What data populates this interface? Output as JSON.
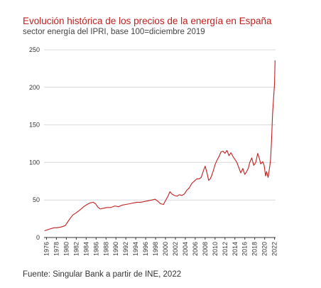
{
  "header": {
    "title": "Evolución histórica de los precios de la energía en España",
    "subtitle": "sector energía del IPRI, base 100=diciembre 2019"
  },
  "footer": {
    "source": "Fuente: Singular Bank a partir de INE, 2022"
  },
  "colors": {
    "series": "#c0201f",
    "grid": "#d9d9d9",
    "text": "#333333"
  },
  "chart_data": {
    "type": "line",
    "title": "Evolución histórica de los precios de la energía en España",
    "subtitle": "sector energía del IPRI, base 100=diciembre 2019",
    "xlabel": "",
    "ylabel": "",
    "xlim": [
      1975.5,
      2022.2
    ],
    "ylim": [
      0,
      250
    ],
    "yticks": [
      0,
      50,
      100,
      150,
      200,
      250
    ],
    "xticks": [
      1976,
      1978,
      1980,
      1982,
      1984,
      1986,
      1988,
      1990,
      1992,
      1994,
      1996,
      1998,
      2000,
      2002,
      2004,
      2006,
      2008,
      2010,
      2012,
      2014,
      2016,
      2018,
      2020,
      2022
    ],
    "grid": true,
    "legend": "none",
    "series": [
      {
        "x": [
          1975.6,
          1976.5,
          1977.5,
          1978.0,
          1979.0,
          1979.8,
          1980.5,
          1981.3,
          1982.0,
          1982.8,
          1983.5,
          1984.2,
          1984.8,
          1985.4,
          1985.9,
          1986.3,
          1986.8,
          1987.5,
          1988.2,
          1989.0,
          1989.8,
          1990.5,
          1991.2,
          1992.0,
          1992.8,
          1993.5,
          1994.3,
          1995.0,
          1995.8,
          1996.5,
          1997.3,
          1997.9,
          1998.5,
          1999.0,
          1999.6,
          2000.0,
          2000.5,
          2000.9,
          2001.3,
          2001.8,
          2002.3,
          2002.8,
          2003.3,
          2003.8,
          2004.3,
          2004.8,
          2005.3,
          2005.8,
          2006.3,
          2006.8,
          2007.2,
          2007.6,
          2008.0,
          2008.4,
          2008.7,
          2009.0,
          2009.3,
          2009.7,
          2010.0,
          2010.4,
          2010.8,
          2011.2,
          2011.6,
          2012.0,
          2012.4,
          2012.8,
          2013.2,
          2013.6,
          2014.0,
          2014.4,
          2014.8,
          2015.2,
          2015.6,
          2016.0,
          2016.3,
          2016.7,
          2017.0,
          2017.4,
          2017.8,
          2018.2,
          2018.6,
          2018.9,
          2019.2,
          2019.6,
          2019.9,
          2020.2,
          2020.4,
          2020.7,
          2021.0,
          2021.2,
          2021.4,
          2021.6,
          2021.8,
          2022.0,
          2022.1
        ],
        "values": [
          9,
          11,
          13,
          13,
          14,
          16,
          23,
          30,
          33,
          37,
          41,
          44,
          46,
          47,
          45,
          41,
          38,
          39,
          40,
          40,
          42,
          41,
          43,
          44,
          45,
          46,
          47,
          47,
          48,
          49,
          50,
          51,
          48,
          45,
          44,
          49,
          55,
          61,
          58,
          56,
          55,
          57,
          56,
          58,
          63,
          66,
          72,
          75,
          78,
          78,
          80,
          88,
          95,
          85,
          76,
          78,
          82,
          90,
          97,
          103,
          108,
          114,
          115,
          112,
          116,
          109,
          113,
          108,
          104,
          100,
          93,
          86,
          92,
          84,
          87,
          92,
          100,
          106,
          96,
          100,
          112,
          106,
          98,
          101,
          96,
          82,
          88,
          80,
          93,
          104,
          130,
          165,
          185,
          205,
          236
        ]
      }
    ]
  }
}
